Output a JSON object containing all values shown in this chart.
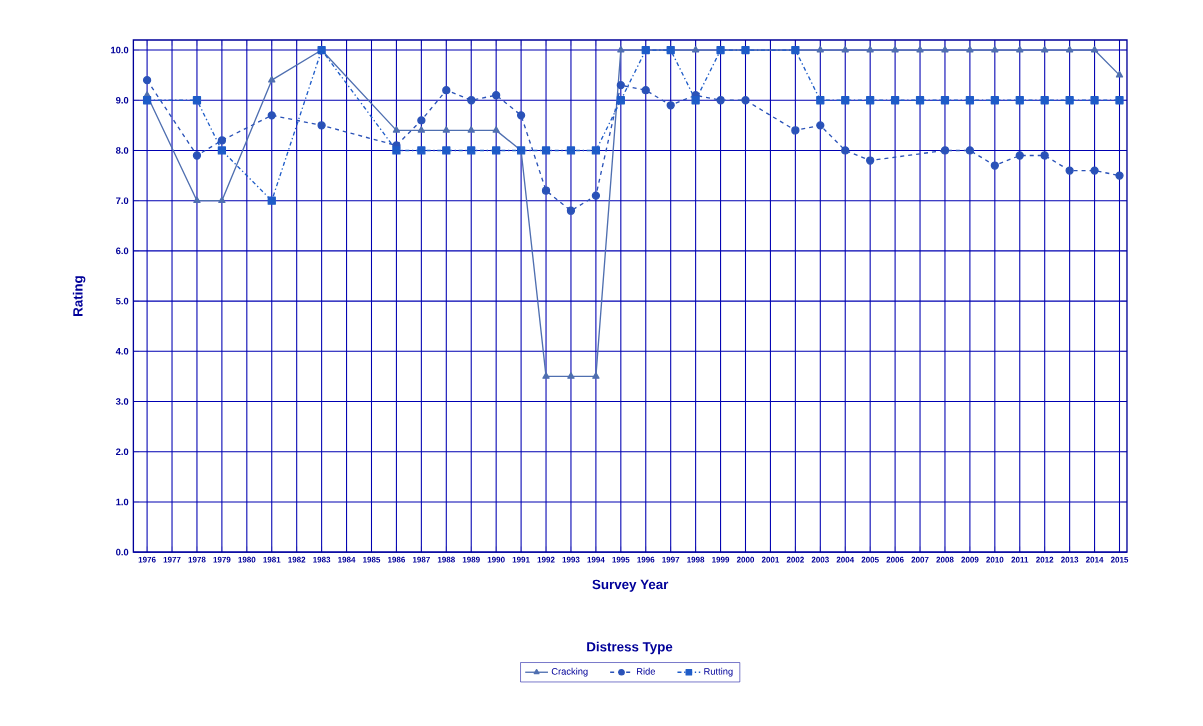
{
  "chart_data": {
    "type": "line",
    "xlabel": "Survey Year",
    "ylabel": "Rating",
    "legend_title": "Distress Type",
    "xlim": [
      1975.45,
      2015.3
    ],
    "ylim": [
      0,
      10.2
    ],
    "xticks": [
      1976,
      1977,
      1978,
      1979,
      1980,
      1981,
      1982,
      1983,
      1984,
      1985,
      1986,
      1987,
      1988,
      1989,
      1990,
      1991,
      1992,
      1993,
      1994,
      1995,
      1996,
      1997,
      1998,
      1999,
      2000,
      2001,
      2002,
      2003,
      2004,
      2005,
      2006,
      2007,
      2008,
      2009,
      2010,
      2011,
      2012,
      2013,
      2014,
      2015
    ],
    "yticks": [
      {
        "value": 0,
        "label": "0.0"
      },
      {
        "value": 1,
        "label": "1.0"
      },
      {
        "value": 2,
        "label": "2.0"
      },
      {
        "value": 3,
        "label": "3.0"
      },
      {
        "value": 4,
        "label": "4.0"
      },
      {
        "value": 5,
        "label": "5.0"
      },
      {
        "value": 6,
        "label": "6.0"
      },
      {
        "value": 7,
        "label": "7.0"
      },
      {
        "value": 8,
        "label": "8.0"
      },
      {
        "value": 9,
        "label": "9.0"
      },
      {
        "value": 10,
        "label": "10.0"
      }
    ],
    "grid": true,
    "legend": "bottom",
    "series": [
      {
        "name": "Cracking",
        "color": "#4f6fb0",
        "marker": "triangle",
        "line_style": "solid",
        "x": [
          1976,
          1978,
          1979,
          1981,
          1983,
          1986,
          1987,
          1988,
          1989,
          1990,
          1991,
          1992,
          1993,
          1994,
          1995,
          1996,
          1997,
          1998,
          1999,
          2000,
          2002,
          2003,
          2004,
          2005,
          2006,
          2007,
          2008,
          2009,
          2010,
          2011,
          2012,
          2013,
          2014,
          2015
        ],
        "values": [
          9.1,
          7.0,
          7.0,
          9.4,
          10.0,
          8.4,
          8.4,
          8.4,
          8.4,
          8.4,
          8.0,
          3.5,
          3.5,
          3.5,
          10.0,
          10.0,
          10.0,
          10.0,
          10.0,
          10.0,
          10.0,
          10.0,
          10.0,
          10.0,
          10.0,
          10.0,
          10.0,
          10.0,
          10.0,
          10.0,
          10.0,
          10.0,
          10.0,
          9.5
        ]
      },
      {
        "name": "Ride",
        "color": "#2a52b8",
        "marker": "circle",
        "line_style": "dashed",
        "x": [
          1976,
          1978,
          1979,
          1981,
          1983,
          1986,
          1987,
          1988,
          1989,
          1990,
          1991,
          1992,
          1993,
          1994,
          1995,
          1996,
          1997,
          1998,
          1999,
          2000,
          2002,
          2003,
          2004,
          2005,
          2008,
          2009,
          2010,
          2011,
          2012,
          2013,
          2014,
          2015
        ],
        "values": [
          9.4,
          7.9,
          8.2,
          8.7,
          8.5,
          8.1,
          8.6,
          9.2,
          9.0,
          9.1,
          8.7,
          7.2,
          6.8,
          7.1,
          9.3,
          9.2,
          8.9,
          9.1,
          9.0,
          9.0,
          8.4,
          8.5,
          8.0,
          7.8,
          8.0,
          8.0,
          7.7,
          7.9,
          7.9,
          7.6,
          7.6,
          7.5
        ]
      },
      {
        "name": "Rutting",
        "color": "#1e5cc8",
        "marker": "square",
        "line_style": "dotted",
        "x": [
          1976,
          1978,
          1979,
          1981,
          1983,
          1986,
          1987,
          1988,
          1989,
          1990,
          1991,
          1992,
          1993,
          1994,
          1995,
          1996,
          1997,
          1998,
          1999,
          2000,
          2002,
          2003,
          2004,
          2005,
          2006,
          2007,
          2008,
          2009,
          2010,
          2011,
          2012,
          2013,
          2014,
          2015
        ],
        "values": [
          9.0,
          9.0,
          8.0,
          7.0,
          10.0,
          8.0,
          8.0,
          8.0,
          8.0,
          8.0,
          8.0,
          8.0,
          8.0,
          8.0,
          9.0,
          10.0,
          10.0,
          9.0,
          10.0,
          10.0,
          10.0,
          9.0,
          9.0,
          9.0,
          9.0,
          9.0,
          9.0,
          9.0,
          9.0,
          9.0,
          9.0,
          9.0,
          9.0,
          9.0
        ]
      }
    ]
  }
}
